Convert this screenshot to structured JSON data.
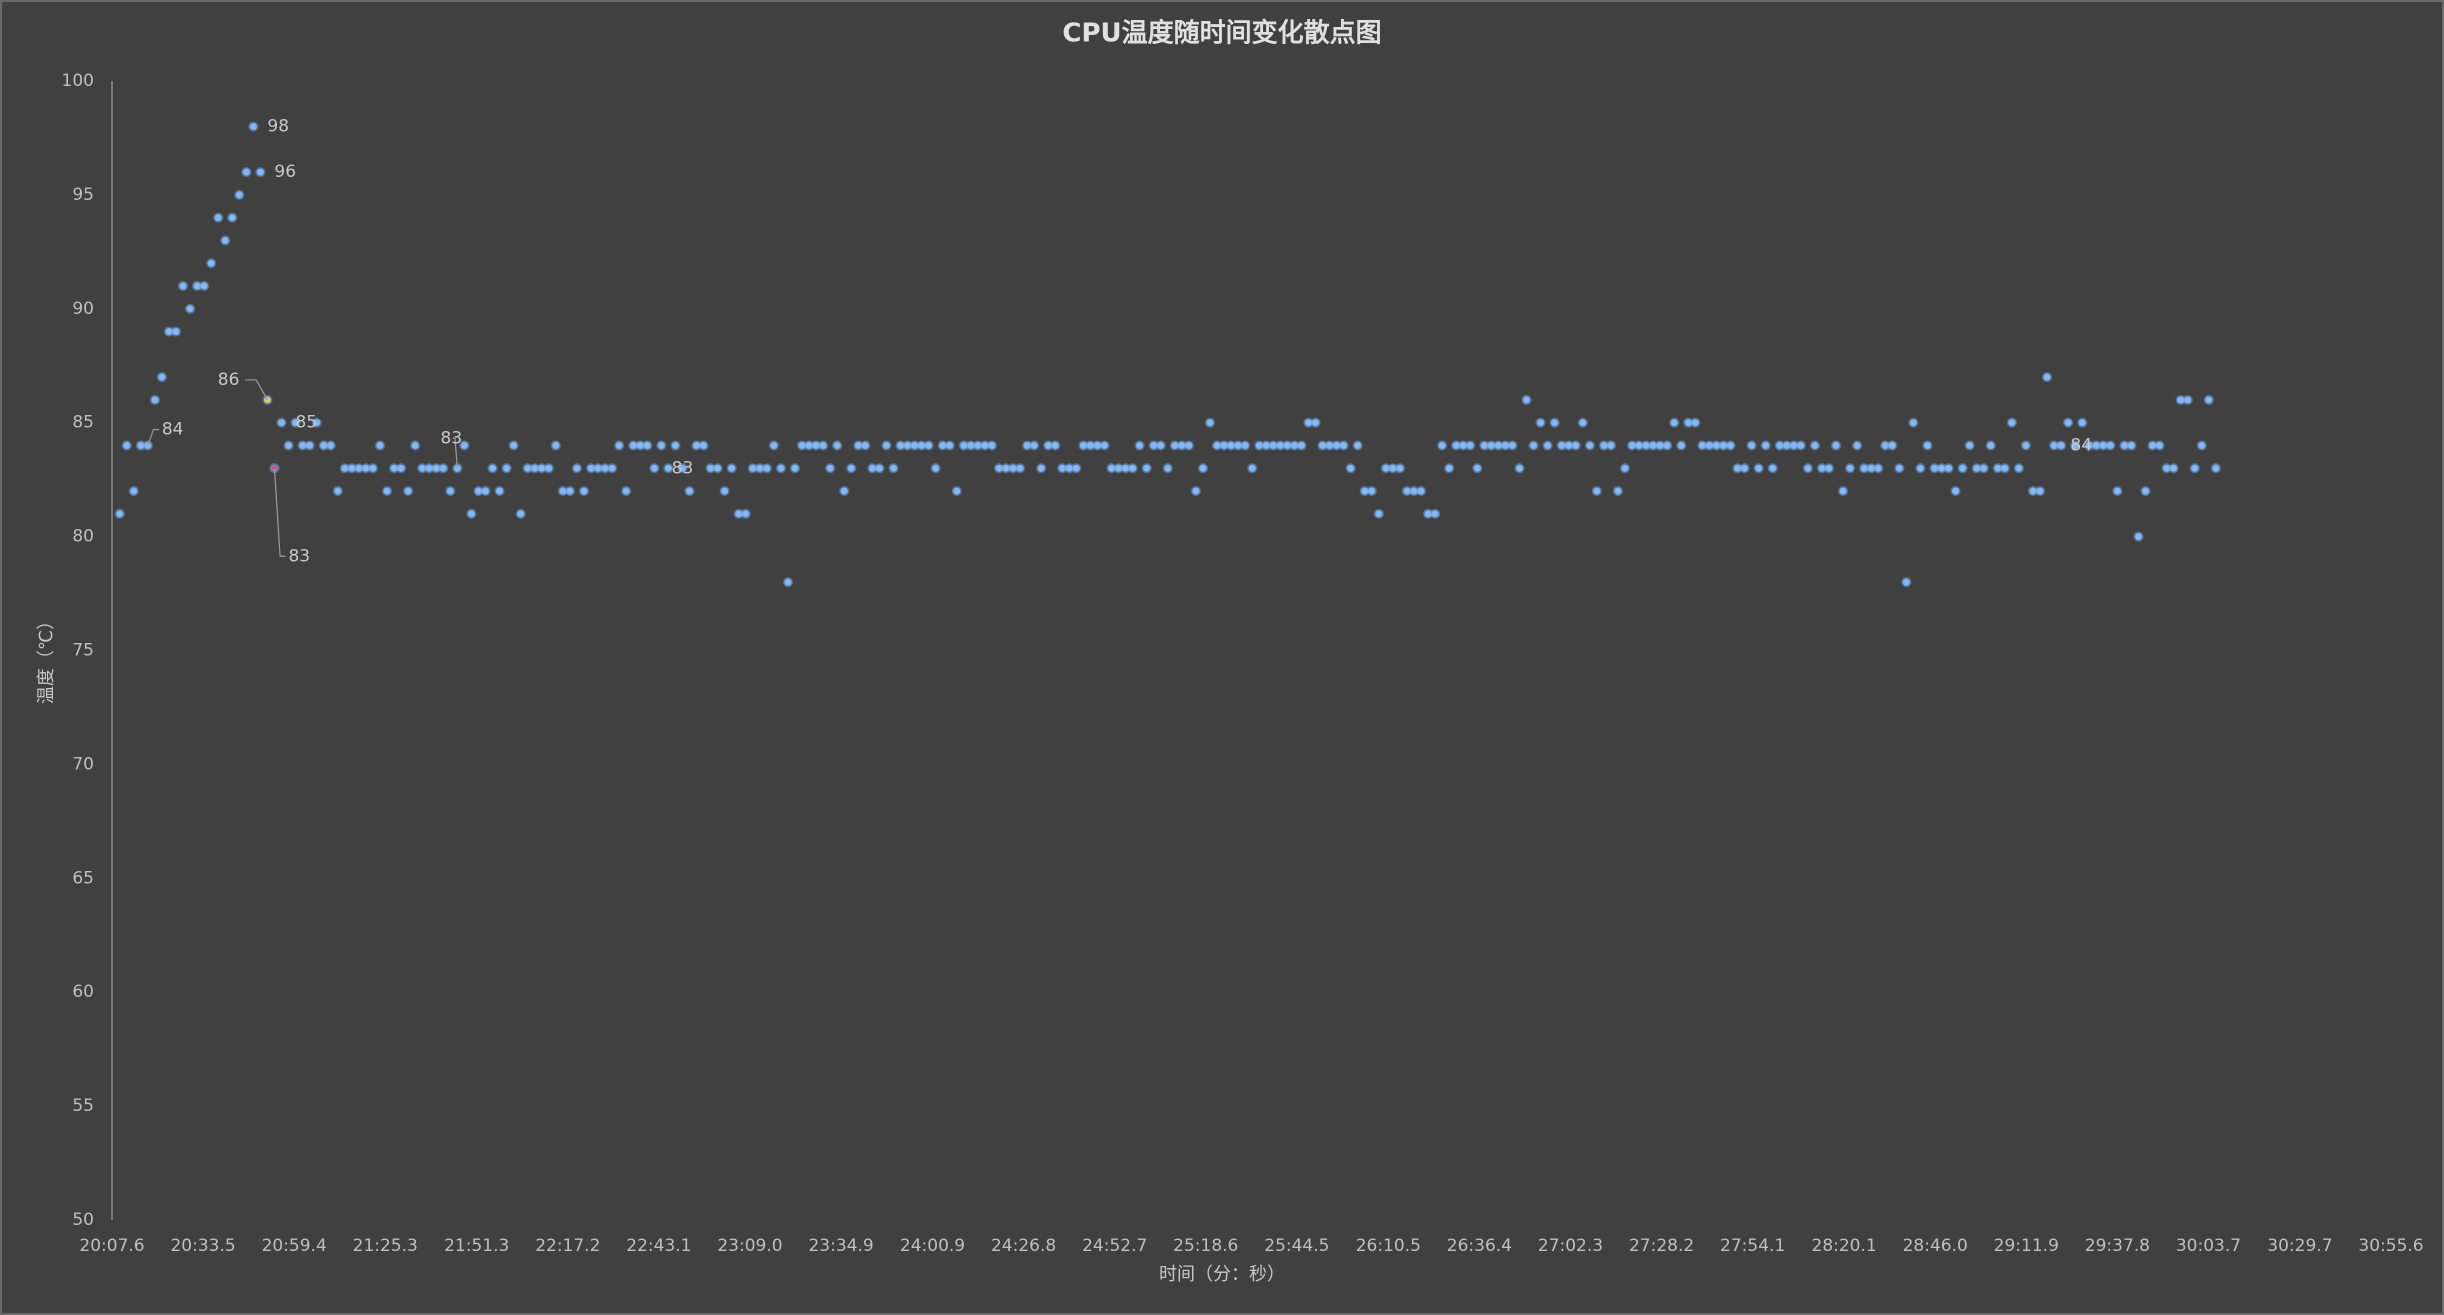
{
  "chart_data": {
    "type": "scatter",
    "title": "CPU温度随时间变化散点图",
    "x_label": "时间（分：秒）",
    "y_label": "温度（℃）",
    "xlim": [
      1207.6,
      1855.6
    ],
    "xticks": [
      {
        "value": 1207.6,
        "label": "20:07.6"
      },
      {
        "value": 1233.5,
        "label": "20:33.5"
      },
      {
        "value": 1259.4,
        "label": "20:59.4"
      },
      {
        "value": 1285.3,
        "label": "21:25.3"
      },
      {
        "value": 1311.3,
        "label": "21:51.3"
      },
      {
        "value": 1337.2,
        "label": "22:17.2"
      },
      {
        "value": 1363.1,
        "label": "22:43.1"
      },
      {
        "value": 1389.0,
        "label": "23:09.0"
      },
      {
        "value": 1414.9,
        "label": "23:34.9"
      },
      {
        "value": 1440.9,
        "label": "24:00.9"
      },
      {
        "value": 1466.8,
        "label": "24:26.8"
      },
      {
        "value": 1492.7,
        "label": "24:52.7"
      },
      {
        "value": 1518.6,
        "label": "25:18.6"
      },
      {
        "value": 1544.5,
        "label": "25:44.5"
      },
      {
        "value": 1570.5,
        "label": "26:10.5"
      },
      {
        "value": 1596.4,
        "label": "26:36.4"
      },
      {
        "value": 1622.3,
        "label": "27:02.3"
      },
      {
        "value": 1648.2,
        "label": "27:28.2"
      },
      {
        "value": 1674.1,
        "label": "27:54.1"
      },
      {
        "value": 1700.1,
        "label": "28:20.1"
      },
      {
        "value": 1726.0,
        "label": "28:46.0"
      },
      {
        "value": 1751.9,
        "label": "29:11.9"
      },
      {
        "value": 1777.8,
        "label": "29:37.8"
      },
      {
        "value": 1803.7,
        "label": "30:03.7"
      },
      {
        "value": 1829.7,
        "label": "30:29.7"
      },
      {
        "value": 1855.6,
        "label": "30:55.6"
      }
    ],
    "ylim": [
      50,
      100
    ],
    "yticks": [
      50,
      55,
      60,
      65,
      70,
      75,
      80,
      85,
      90,
      95,
      100
    ],
    "grid": false,
    "series": [
      {
        "color": "#8ab8ee",
        "x": [
          1209.8,
          1211.8,
          1213.8,
          1215.8,
          1217.8,
          1219.8,
          1221.8,
          1223.8,
          1225.8,
          1227.8,
          1229.8,
          1231.8,
          1233.8,
          1235.8,
          1237.8,
          1239.8,
          1241.8,
          1243.8,
          1245.8,
          1247.8,
          1249.8,
          1251.8,
          1253.8,
          1255.8,
          1257.8,
          1259.8,
          1261.8,
          1263.8,
          1265.8,
          1267.8,
          1269.8,
          1271.8,
          1273.8,
          1275.8,
          1277.8,
          1279.8,
          1281.8,
          1283.8,
          1285.8,
          1287.8,
          1289.8,
          1291.8,
          1293.8,
          1295.8,
          1297.8,
          1299.8,
          1301.8,
          1303.8,
          1305.8,
          1307.8,
          1309.8,
          1311.8,
          1313.8,
          1315.8,
          1317.8,
          1319.8,
          1321.8,
          1323.8,
          1325.8,
          1327.8,
          1329.8,
          1331.8,
          1333.8,
          1335.8,
          1337.8,
          1339.8,
          1341.8,
          1343.8,
          1345.8,
          1347.8,
          1349.8,
          1351.8,
          1353.8,
          1355.8,
          1357.8,
          1359.8,
          1361.8,
          1363.8,
          1365.8,
          1367.8,
          1369.8,
          1371.8,
          1373.8,
          1375.8,
          1377.8,
          1379.8,
          1381.8,
          1383.8,
          1385.8,
          1387.8,
          1389.8,
          1391.8,
          1393.8,
          1395.8,
          1397.8,
          1399.8,
          1401.8,
          1403.8,
          1405.8,
          1407.8,
          1409.8,
          1411.8,
          1413.8,
          1415.8,
          1417.8,
          1419.8,
          1421.8,
          1423.8,
          1425.8,
          1427.8,
          1429.8,
          1431.8,
          1433.8,
          1435.8,
          1437.8,
          1439.8,
          1441.8,
          1443.8,
          1445.8,
          1447.8,
          1449.8,
          1451.8,
          1453.8,
          1455.8,
          1457.8,
          1459.8,
          1461.8,
          1463.8,
          1465.8,
          1467.8,
          1469.8,
          1471.8,
          1473.8,
          1475.8,
          1477.8,
          1479.8,
          1481.8,
          1483.8,
          1485.8,
          1487.8,
          1489.8,
          1491.8,
          1493.8,
          1495.8,
          1497.8,
          1499.8,
          1501.8,
          1503.8,
          1505.8,
          1507.8,
          1509.8,
          1511.8,
          1513.8,
          1515.8,
          1517.8,
          1519.8,
          1521.8,
          1523.8,
          1525.8,
          1527.8,
          1529.8,
          1531.8,
          1533.8,
          1535.8,
          1537.8,
          1539.8,
          1541.8,
          1543.8,
          1545.8,
          1547.8,
          1549.8,
          1551.8,
          1553.8,
          1555.8,
          1557.8,
          1559.8,
          1561.8,
          1563.8,
          1565.8,
          1567.8,
          1569.8,
          1571.8,
          1573.8,
          1575.8,
          1577.8,
          1579.8,
          1581.8,
          1583.8,
          1585.8,
          1587.8,
          1589.8,
          1591.8,
          1593.8,
          1595.8,
          1597.8,
          1599.8,
          1601.8,
          1603.8,
          1605.8,
          1607.8,
          1609.8,
          1611.8,
          1613.8,
          1615.8,
          1617.8,
          1619.8,
          1621.8,
          1623.8,
          1625.8,
          1627.8,
          1629.8,
          1631.8,
          1633.8,
          1635.8,
          1637.8,
          1639.8,
          1641.8,
          1643.8,
          1645.8,
          1647.8,
          1649.8,
          1651.8,
          1653.8,
          1655.8,
          1657.8,
          1659.8,
          1661.8,
          1663.8,
          1665.8,
          1667.8,
          1669.8,
          1671.8,
          1673.8,
          1675.8,
          1677.8,
          1679.8,
          1681.8,
          1683.8,
          1685.8,
          1687.8,
          1689.8,
          1691.8,
          1693.8,
          1695.8,
          1697.8,
          1699.8,
          1701.8,
          1703.8,
          1705.8,
          1707.8,
          1709.8,
          1711.8,
          1713.8,
          1715.8,
          1717.8,
          1719.8,
          1721.8,
          1723.8,
          1725.8,
          1727.8,
          1729.8,
          1731.8,
          1733.8,
          1735.8,
          1737.8,
          1739.8,
          1741.8,
          1743.8,
          1745.8,
          1747.8,
          1749.8,
          1751.8,
          1753.8,
          1755.8,
          1757.8,
          1759.8,
          1761.8,
          1763.8,
          1765.8,
          1767.8,
          1769.8,
          1771.8,
          1773.8,
          1775.8,
          1777.8,
          1779.8,
          1781.8,
          1783.8,
          1785.8,
          1787.8,
          1789.8,
          1791.8,
          1793.8,
          1795.8,
          1797.8,
          1799.8,
          1801.8,
          1803.8,
          1805.8
        ],
        "values": [
          81,
          84,
          82,
          84,
          84,
          86,
          87,
          89,
          89,
          91,
          90,
          91,
          91,
          92,
          94,
          93,
          94,
          95,
          96,
          98,
          96,
          86,
          83,
          85,
          84,
          85,
          84,
          84,
          85,
          84,
          84,
          82,
          83,
          83,
          83,
          83,
          83,
          84,
          82,
          83,
          83,
          82,
          84,
          83,
          83,
          83,
          83,
          82,
          83,
          84,
          81,
          82,
          82,
          83,
          82,
          83,
          84,
          81,
          83,
          83,
          83,
          83,
          84,
          82,
          82,
          83,
          82,
          83,
          83,
          83,
          83,
          84,
          82,
          84,
          84,
          84,
          83,
          84,
          83,
          84,
          83,
          82,
          84,
          84,
          83,
          83,
          82,
          83,
          81,
          81,
          83,
          83,
          83,
          84,
          83,
          78,
          83,
          84,
          84,
          84,
          84,
          83,
          84,
          82,
          83,
          84,
          84,
          83,
          83,
          84,
          83,
          84,
          84,
          84,
          84,
          84,
          83,
          84,
          84,
          82,
          84,
          84,
          84,
          84,
          84,
          83,
          83,
          83,
          83,
          84,
          84,
          83,
          84,
          84,
          83,
          83,
          83,
          84,
          84,
          84,
          84,
          83,
          83,
          83,
          83,
          84,
          83,
          84,
          84,
          83,
          84,
          84,
          84,
          82,
          83,
          85,
          84,
          84,
          84,
          84,
          84,
          83,
          84,
          84,
          84,
          84,
          84,
          84,
          84,
          85,
          85,
          84,
          84,
          84,
          84,
          83,
          84,
          82,
          82,
          81,
          83,
          83,
          83,
          82,
          82,
          82,
          81,
          81,
          84,
          83,
          84,
          84,
          84,
          83,
          84,
          84,
          84,
          84,
          84,
          83,
          86,
          84,
          85,
          84,
          85,
          84,
          84,
          84,
          85,
          84,
          82,
          84,
          84,
          82,
          83,
          84,
          84,
          84,
          84,
          84,
          84,
          85,
          84,
          85,
          85,
          84,
          84,
          84,
          84,
          84,
          83,
          83,
          84,
          83,
          84,
          83,
          84,
          84,
          84,
          84,
          83,
          84,
          83,
          83,
          84,
          82,
          83,
          84,
          83,
          83,
          83,
          84,
          84,
          83,
          78,
          85,
          83,
          84,
          83,
          83,
          83,
          82,
          83,
          84,
          83,
          83,
          84,
          83,
          83,
          85,
          83,
          84,
          82,
          82,
          87,
          84,
          84,
          85,
          84,
          85,
          84,
          84,
          84,
          84,
          82,
          84,
          84,
          80,
          82,
          84,
          84,
          83,
          83,
          86,
          86,
          83,
          84,
          86,
          83
        ]
      }
    ],
    "labeled_indices": [
      4,
      19,
      20,
      21,
      22,
      23,
      48,
      80,
      280
    ],
    "highlights": [
      {
        "index": 21,
        "color": "#e8d44a"
      },
      {
        "index": 22,
        "color": "#d8456e"
      }
    ]
  }
}
